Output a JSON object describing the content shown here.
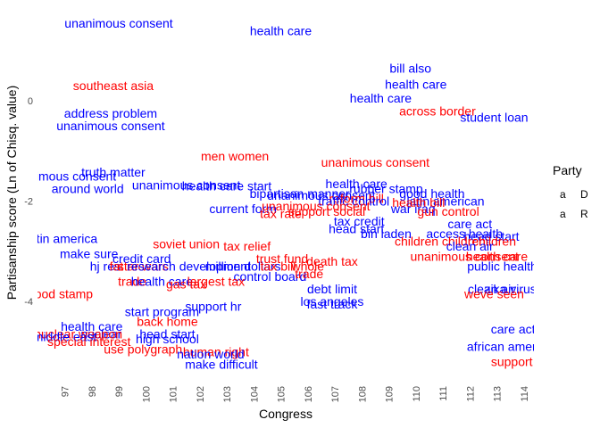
{
  "chart_data": {
    "type": "scatter",
    "xlabel": "Congress",
    "ylabel": "Partisanship score (Ln of Chisq. value)",
    "x_ticks": [
      "97",
      "98",
      "99",
      "100",
      "101",
      "102",
      "103",
      "104",
      "105",
      "106",
      "107",
      "108",
      "109",
      "110",
      "111",
      "112",
      "113",
      "114"
    ],
    "y_ticks": [
      0,
      -2,
      -4
    ],
    "ylim": [
      -5.3,
      1.65
    ],
    "grid": false,
    "legend": {
      "title": "Party",
      "placement": "right",
      "entries": [
        {
          "key": "D",
          "symbol": "a",
          "color": "#0000ff"
        },
        {
          "key": "R",
          "symbol": "a",
          "color": "#ff0000"
        }
      ]
    },
    "colors": {
      "D": "#0000ff",
      "R": "#ff0000"
    },
    "points": [
      {
        "label": "unanimous consent",
        "x": 99,
        "y": 1.55,
        "party": "D"
      },
      {
        "label": "health care",
        "x": 105,
        "y": 1.4,
        "party": "D"
      },
      {
        "label": "southeast asia",
        "x": 98.8,
        "y": 0.3,
        "party": "R"
      },
      {
        "label": "address problem",
        "x": 98.7,
        "y": -0.25,
        "party": "D"
      },
      {
        "label": "unanimous consent",
        "x": 98.7,
        "y": -0.5,
        "party": "D"
      },
      {
        "label": "bill also",
        "x": 109.8,
        "y": 0.65,
        "party": "D"
      },
      {
        "label": "health care",
        "x": 110,
        "y": 0.33,
        "party": "D"
      },
      {
        "label": "health care",
        "x": 108.7,
        "y": 0.05,
        "party": "D"
      },
      {
        "label": "across border",
        "x": 110.8,
        "y": -0.2,
        "party": "R"
      },
      {
        "label": "student loan",
        "x": 112.9,
        "y": -0.33,
        "party": "D"
      },
      {
        "label": "men women",
        "x": 103.3,
        "y": -1.1,
        "party": "R"
      },
      {
        "label": "unanimous consent",
        "x": 108.5,
        "y": -1.23,
        "party": "R"
      },
      {
        "label": "truth matter",
        "x": 98.8,
        "y": -1.42,
        "party": "D"
      },
      {
        "label": "unanimous consent",
        "x": 96.9,
        "y": -1.5,
        "party": "D"
      },
      {
        "label": "around world",
        "x": 97.85,
        "y": -1.75,
        "party": "D"
      },
      {
        "label": "unanimous consent",
        "x": 101.5,
        "y": -1.68,
        "party": "D"
      },
      {
        "label": "health care start",
        "x": 103,
        "y": -1.7,
        "party": "D"
      },
      {
        "label": "health care",
        "x": 107.8,
        "y": -1.65,
        "party": "D"
      },
      {
        "label": "rubber stamp",
        "x": 108.9,
        "y": -1.75,
        "party": "D"
      },
      {
        "label": "bipartisan manner",
        "x": 105.7,
        "y": -1.85,
        "party": "D"
      },
      {
        "label": "unanimous consent",
        "x": 106.5,
        "y": -1.88,
        "party": "D"
      },
      {
        "label": "reform bill",
        "x": 107.8,
        "y": -1.95,
        "party": "R"
      },
      {
        "label": "traffic control",
        "x": 107.7,
        "y": -2.0,
        "party": "D"
      },
      {
        "label": "good health",
        "x": 110.6,
        "y": -1.85,
        "party": "D"
      },
      {
        "label": "latin american",
        "x": 111.1,
        "y": -2.0,
        "party": "D"
      },
      {
        "label": "health bill",
        "x": 110.1,
        "y": -2.03,
        "party": "R"
      },
      {
        "label": "war iraq",
        "x": 109.9,
        "y": -2.15,
        "party": "D"
      },
      {
        "label": "gun control",
        "x": 111.2,
        "y": -2.2,
        "party": "R"
      },
      {
        "label": "current form",
        "x": 103.6,
        "y": -2.15,
        "party": "D"
      },
      {
        "label": "tax rate",
        "x": 105,
        "y": -2.25,
        "party": "R"
      },
      {
        "label": "unanimous consent",
        "x": 106.3,
        "y": -2.1,
        "party": "R"
      },
      {
        "label": "support social",
        "x": 106.7,
        "y": -2.2,
        "party": "R"
      },
      {
        "label": "tax credit",
        "x": 107.9,
        "y": -2.4,
        "party": "D"
      },
      {
        "label": "head start",
        "x": 107.8,
        "y": -2.55,
        "party": "D"
      },
      {
        "label": "bin laden",
        "x": 108.9,
        "y": -2.65,
        "party": "D"
      },
      {
        "label": "care act",
        "x": 112,
        "y": -2.45,
        "party": "D"
      },
      {
        "label": "access health",
        "x": 111.8,
        "y": -2.65,
        "party": "D"
      },
      {
        "label": "head start",
        "x": 112.8,
        "y": -2.7,
        "party": "D"
      },
      {
        "label": "children children",
        "x": 110.9,
        "y": -2.8,
        "party": "R"
      },
      {
        "label": "children",
        "x": 112.9,
        "y": -2.8,
        "party": "R"
      },
      {
        "label": "clean air",
        "x": 112,
        "y": -2.9,
        "party": "D"
      },
      {
        "label": "latin america",
        "x": 96.9,
        "y": -2.75,
        "party": "D"
      },
      {
        "label": "make sure",
        "x": 97.9,
        "y": -3.05,
        "party": "D"
      },
      {
        "label": "soviet union",
        "x": 101.5,
        "y": -2.85,
        "party": "R"
      },
      {
        "label": "tax relief",
        "x": 103.75,
        "y": -2.9,
        "party": "R"
      },
      {
        "label": "credit card",
        "x": 99.85,
        "y": -3.15,
        "party": "D"
      },
      {
        "label": "trust fund",
        "x": 105.05,
        "y": -3.15,
        "party": "R"
      },
      {
        "label": "death tax",
        "x": 106.9,
        "y": -3.2,
        "party": "R"
      },
      {
        "label": "hj res",
        "x": 98.5,
        "y": -3.3,
        "party": "D"
      },
      {
        "label": "fat rec",
        "x": 99.3,
        "y": -3.3,
        "party": "R"
      },
      {
        "label": "star wars",
        "x": 99.9,
        "y": -3.3,
        "party": "R"
      },
      {
        "label": "research development",
        "x": 101.6,
        "y": -3.3,
        "party": "D"
      },
      {
        "label": "million dollars",
        "x": 103.6,
        "y": -3.3,
        "party": "D"
      },
      {
        "label": "tax bill",
        "x": 104.9,
        "y": -3.3,
        "party": "R"
      },
      {
        "label": "whole",
        "x": 106,
        "y": -3.3,
        "party": "R"
      },
      {
        "label": "control board",
        "x": 104.6,
        "y": -3.5,
        "party": "D"
      },
      {
        "label": "trade",
        "x": 106.05,
        "y": -3.45,
        "party": "R"
      },
      {
        "label": "trade",
        "x": 99.5,
        "y": -3.6,
        "party": "R"
      },
      {
        "label": "health care",
        "x": 100.6,
        "y": -3.6,
        "party": "D"
      },
      {
        "label": "gas tax",
        "x": 101.5,
        "y": -3.65,
        "party": "R"
      },
      {
        "label": "largest tax",
        "x": 102.6,
        "y": -3.6,
        "party": "R"
      },
      {
        "label": "public health",
        "x": 113.2,
        "y": -3.3,
        "party": "D"
      },
      {
        "label": "unanimous consent",
        "x": 111.8,
        "y": -3.1,
        "party": "R"
      },
      {
        "label": "health care",
        "x": 113,
        "y": -3.1,
        "party": "R"
      },
      {
        "label": "debt limit",
        "x": 106.9,
        "y": -3.75,
        "party": "D"
      },
      {
        "label": "fast track",
        "x": 106.9,
        "y": -4.05,
        "party": "D"
      },
      {
        "label": "los angeles",
        "x": 106.9,
        "y": -4.0,
        "party": "D"
      },
      {
        "label": "clean air",
        "x": 112.8,
        "y": -3.75,
        "party": "D"
      },
      {
        "label": "zika virus",
        "x": 113.5,
        "y": -3.75,
        "party": "D"
      },
      {
        "label": "weve seen",
        "x": 112.9,
        "y": -3.85,
        "party": "R"
      },
      {
        "label": "food stamp",
        "x": 96.9,
        "y": -3.85,
        "party": "R"
      },
      {
        "label": "support hr",
        "x": 102.5,
        "y": -4.1,
        "party": "D"
      },
      {
        "label": "start program",
        "x": 100.6,
        "y": -4.2,
        "party": "D"
      },
      {
        "label": "back home",
        "x": 100.8,
        "y": -4.4,
        "party": "R"
      },
      {
        "label": "health care",
        "x": 98,
        "y": -4.5,
        "party": "D"
      },
      {
        "label": "nuclear",
        "x": 98.35,
        "y": -4.65,
        "party": "D"
      },
      {
        "label": "nuclear weapon",
        "x": 97.5,
        "y": -4.65,
        "party": "R"
      },
      {
        "label": "middle east",
        "x": 97,
        "y": -4.7,
        "party": "D"
      },
      {
        "label": "special interest",
        "x": 97.9,
        "y": -4.8,
        "party": "R"
      },
      {
        "label": "head start",
        "x": 100.8,
        "y": -4.65,
        "party": "D"
      },
      {
        "label": "high school",
        "x": 100.8,
        "y": -4.75,
        "party": "D"
      },
      {
        "label": "use polygraph",
        "x": 99.9,
        "y": -4.95,
        "party": "R"
      },
      {
        "label": "human right",
        "x": 102.6,
        "y": -5.0,
        "party": "R"
      },
      {
        "label": "nation world",
        "x": 102.4,
        "y": -5.05,
        "party": "D"
      },
      {
        "label": "make difficult",
        "x": 102.8,
        "y": -5.25,
        "party": "D"
      },
      {
        "label": "care act",
        "x": 113.6,
        "y": -4.55,
        "party": "D"
      },
      {
        "label": "african american",
        "x": 113.6,
        "y": -4.9,
        "party": "D"
      },
      {
        "label": "support bill",
        "x": 113.9,
        "y": -5.2,
        "party": "R"
      }
    ]
  }
}
